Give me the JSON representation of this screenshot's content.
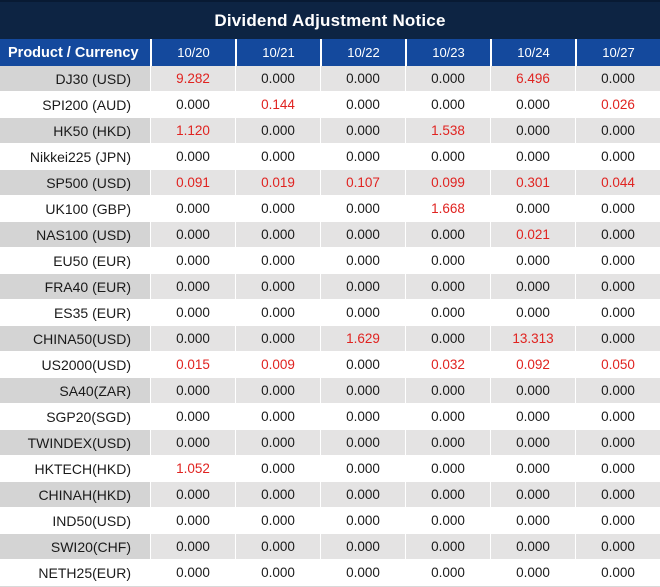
{
  "title": "Dividend Adjustment Notice",
  "table": {
    "product_header": "Product / Currency",
    "columns": [
      "10/20",
      "10/21",
      "10/22",
      "10/23",
      "10/24",
      "10/27"
    ],
    "rows": [
      {
        "product": "DJ30 (USD)",
        "values": [
          "9.282",
          "0.000",
          "0.000",
          "0.000",
          "6.496",
          "0.000"
        ]
      },
      {
        "product": "SPI200 (AUD)",
        "values": [
          "0.000",
          "0.144",
          "0.000",
          "0.000",
          "0.000",
          "0.026"
        ]
      },
      {
        "product": "HK50 (HKD)",
        "values": [
          "1.120",
          "0.000",
          "0.000",
          "1.538",
          "0.000",
          "0.000"
        ]
      },
      {
        "product": "Nikkei225 (JPN)",
        "values": [
          "0.000",
          "0.000",
          "0.000",
          "0.000",
          "0.000",
          "0.000"
        ]
      },
      {
        "product": "SP500 (USD)",
        "values": [
          "0.091",
          "0.019",
          "0.107",
          "0.099",
          "0.301",
          "0.044"
        ]
      },
      {
        "product": "UK100 (GBP)",
        "values": [
          "0.000",
          "0.000",
          "0.000",
          "1.668",
          "0.000",
          "0.000"
        ]
      },
      {
        "product": "NAS100 (USD)",
        "values": [
          "0.000",
          "0.000",
          "0.000",
          "0.000",
          "0.021",
          "0.000"
        ]
      },
      {
        "product": "EU50 (EUR)",
        "values": [
          "0.000",
          "0.000",
          "0.000",
          "0.000",
          "0.000",
          "0.000"
        ]
      },
      {
        "product": "FRA40 (EUR)",
        "values": [
          "0.000",
          "0.000",
          "0.000",
          "0.000",
          "0.000",
          "0.000"
        ]
      },
      {
        "product": "ES35 (EUR)",
        "values": [
          "0.000",
          "0.000",
          "0.000",
          "0.000",
          "0.000",
          "0.000"
        ]
      },
      {
        "product": "CHINA50(USD)",
        "values": [
          "0.000",
          "0.000",
          "1.629",
          "0.000",
          "13.313",
          "0.000"
        ]
      },
      {
        "product": "US2000(USD)",
        "values": [
          "0.015",
          "0.009",
          "0.000",
          "0.032",
          "0.092",
          "0.050"
        ]
      },
      {
        "product": "SA40(ZAR)",
        "values": [
          "0.000",
          "0.000",
          "0.000",
          "0.000",
          "0.000",
          "0.000"
        ]
      },
      {
        "product": "SGP20(SGD)",
        "values": [
          "0.000",
          "0.000",
          "0.000",
          "0.000",
          "0.000",
          "0.000"
        ]
      },
      {
        "product": "TWINDEX(USD)",
        "values": [
          "0.000",
          "0.000",
          "0.000",
          "0.000",
          "0.000",
          "0.000"
        ]
      },
      {
        "product": "HKTECH(HKD)",
        "values": [
          "1.052",
          "0.000",
          "0.000",
          "0.000",
          "0.000",
          "0.000"
        ]
      },
      {
        "product": "CHINAH(HKD)",
        "values": [
          "0.000",
          "0.000",
          "0.000",
          "0.000",
          "0.000",
          "0.000"
        ]
      },
      {
        "product": "IND50(USD)",
        "values": [
          "0.000",
          "0.000",
          "0.000",
          "0.000",
          "0.000",
          "0.000"
        ]
      },
      {
        "product": "SWI20(CHF)",
        "values": [
          "0.000",
          "0.000",
          "0.000",
          "0.000",
          "0.000",
          "0.000"
        ]
      },
      {
        "product": "NETH25(EUR)",
        "values": [
          "0.000",
          "0.000",
          "0.000",
          "0.000",
          "0.000",
          "0.000"
        ]
      }
    ]
  },
  "colors": {
    "title_background": "#0d2443",
    "header_background": "#14499d",
    "nonzero_highlight": "#e02320",
    "stripe_label": "#d4d4d4",
    "stripe_value": "#e4e3e3",
    "page_background": "#d9d9d9"
  }
}
